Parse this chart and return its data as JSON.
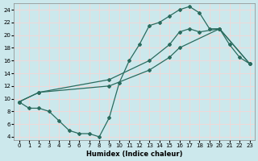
{
  "bg_color": "#cce8ec",
  "grid_color": "#f0d8d8",
  "line_color": "#2a6b5e",
  "xlim": [
    -0.5,
    23.5
  ],
  "ylim": [
    3.5,
    25.0
  ],
  "xticks": [
    0,
    1,
    2,
    3,
    4,
    5,
    6,
    7,
    8,
    9,
    10,
    11,
    12,
    13,
    14,
    15,
    16,
    17,
    18,
    19,
    20,
    21,
    22,
    23
  ],
  "yticks": [
    4,
    6,
    8,
    10,
    12,
    14,
    16,
    18,
    20,
    22,
    24
  ],
  "xlabel": "Humidex (Indice chaleur)",
  "curve1_x": [
    0,
    1,
    2,
    3,
    4,
    5,
    6,
    7,
    8,
    9,
    10,
    11,
    12,
    13,
    14,
    15,
    16,
    17,
    18,
    19,
    20,
    21,
    22,
    23
  ],
  "curve1_y": [
    9.5,
    8.5,
    8.5,
    8.0,
    6.5,
    5.0,
    4.5,
    4.5,
    4.0,
    7.0,
    12.5,
    16.0,
    18.5,
    21.5,
    22.0,
    23.0,
    24.0,
    24.5,
    23.5,
    21.0,
    21.0,
    18.5,
    16.5,
    15.5
  ],
  "curve2_x": [
    0,
    2,
    9,
    13,
    15,
    16,
    17,
    18,
    20,
    23
  ],
  "curve2_y": [
    9.5,
    11.0,
    13.0,
    16.0,
    18.5,
    20.5,
    21.0,
    20.5,
    21.0,
    15.5
  ],
  "curve3_x": [
    0,
    2,
    9,
    13,
    15,
    16,
    20,
    23
  ],
  "curve3_y": [
    9.5,
    11.0,
    12.0,
    14.5,
    16.5,
    18.0,
    21.0,
    15.5
  ]
}
